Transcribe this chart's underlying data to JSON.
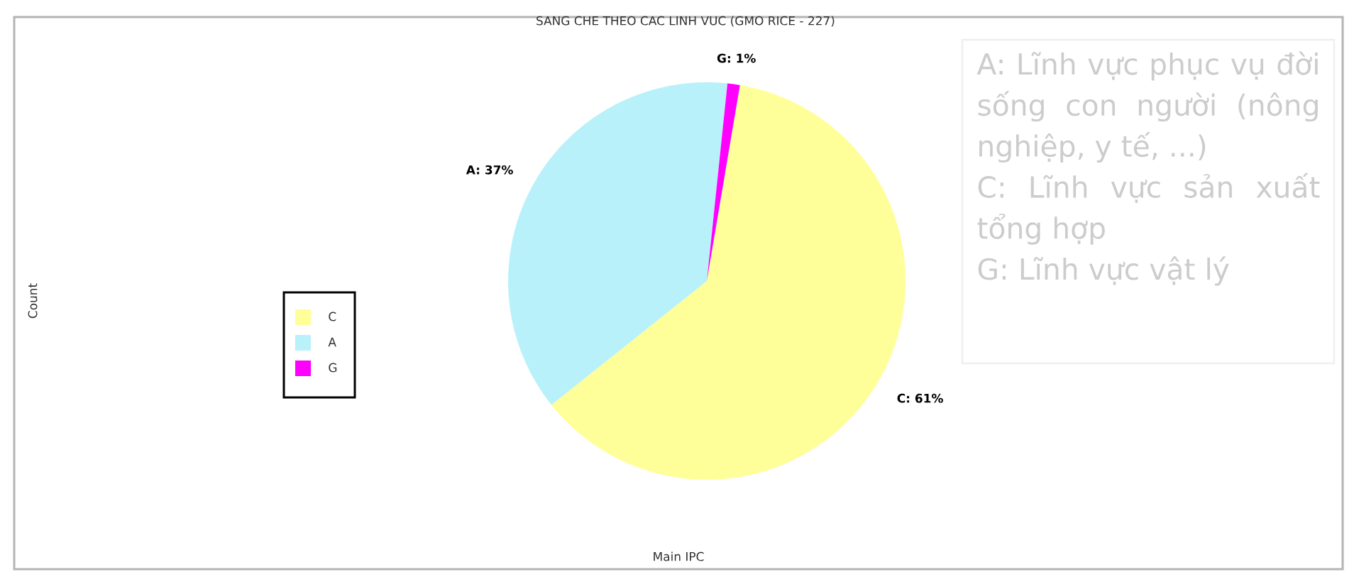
{
  "chart_data": {
    "type": "pie",
    "title": "SANG CHE THEO CAC LINH VUC (GMO RICE - 227)",
    "xlabel": "Main IPC",
    "ylabel": "Count",
    "categories": [
      "C",
      "A",
      "G"
    ],
    "values": [
      61,
      37,
      1
    ],
    "colors": [
      "#ffff99",
      "#b9f1fa",
      "#ff00ff"
    ],
    "value_labels": [
      "C: 61%",
      "A: 37%",
      "G: 1%"
    ],
    "legend": "left",
    "annotations": [
      "A: Lĩnh vực phục vụ đời sống con người (nông nghiệp, y tế, ...)",
      "C: Lĩnh vực sản xuất tổng hợp",
      "G: Lĩnh vực vật lý"
    ]
  }
}
